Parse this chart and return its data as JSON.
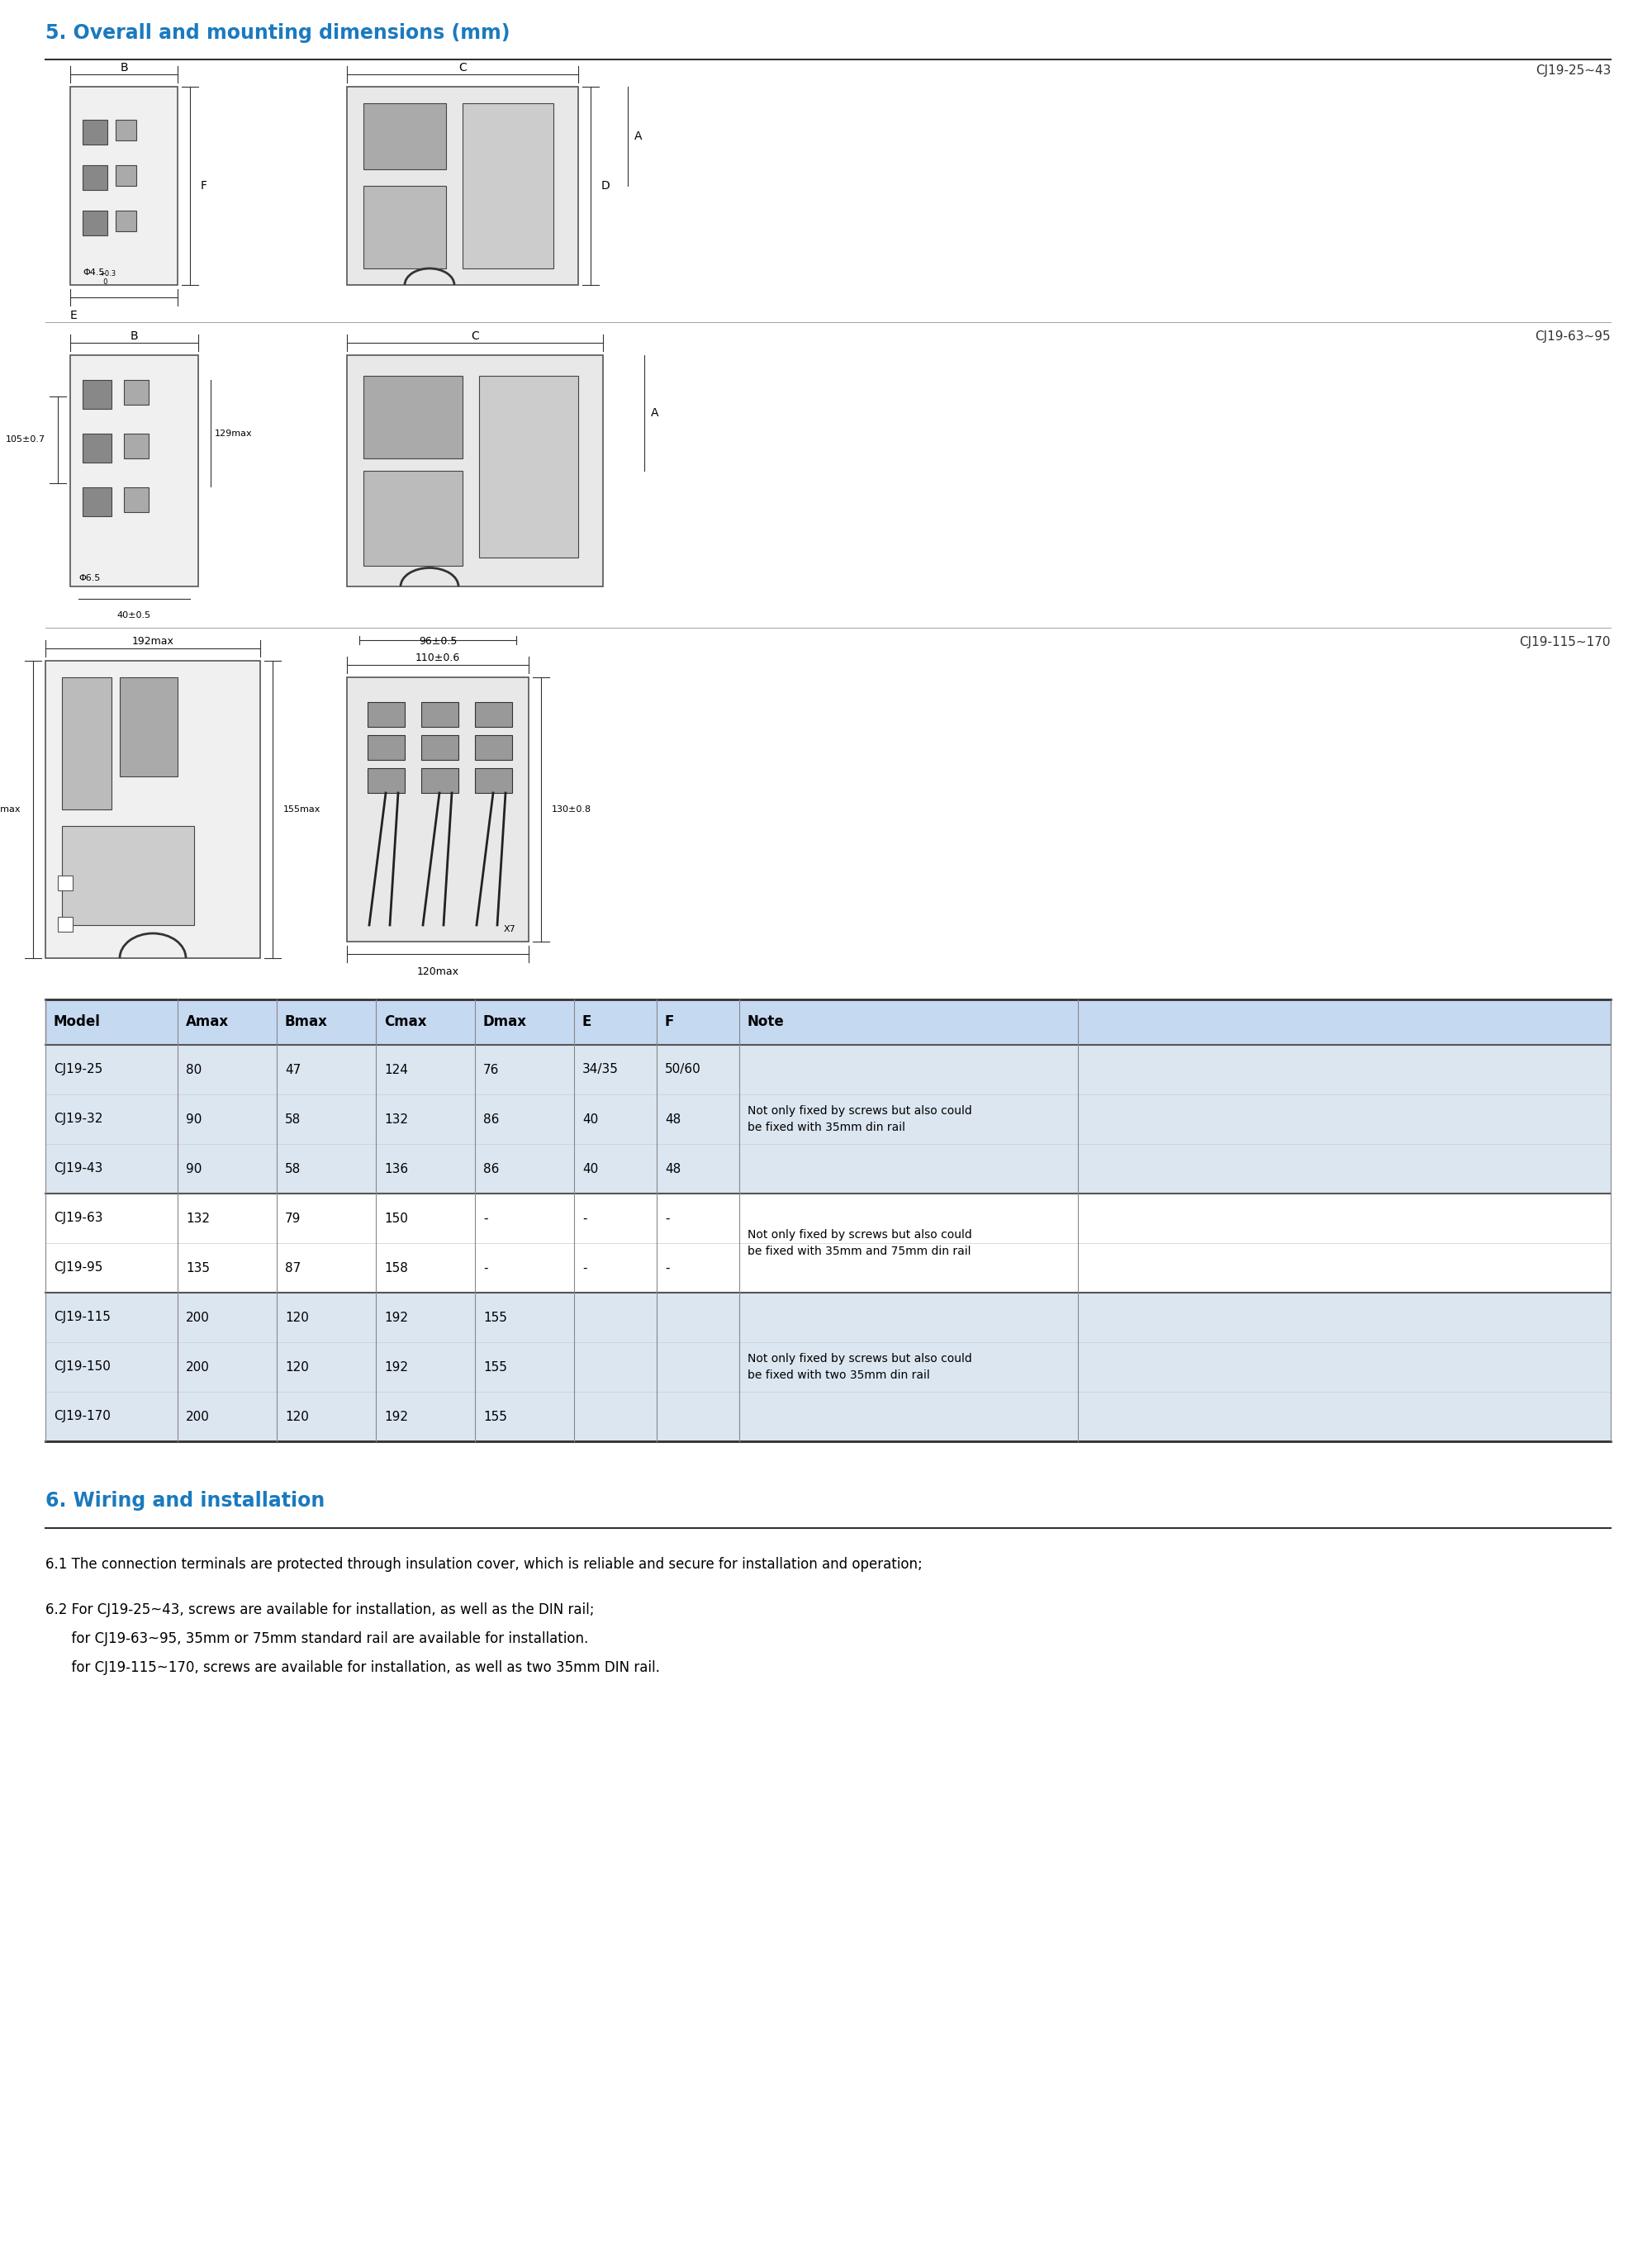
{
  "title_section5": "5. Overall and mounting dimensions (mm)",
  "title_section6": "6. Wiring and installation",
  "title_color": "#1a7abf",
  "bg_color": "#ffffff",
  "label_cj19_25_43": "CJ19-25~43",
  "label_cj19_63_95": "CJ19-63~95",
  "label_cj19_115_170": "CJ19-115~170",
  "table_header": [
    "Model",
    "Amax",
    "Bmax",
    "Cmax",
    "Dmax",
    "E",
    "F",
    "Note"
  ],
  "table_header_bg": "#c5d9f1",
  "table_row_odd_bg": "#dce6f1",
  "table_row_even_bg": "#ffffff",
  "table_rows": [
    [
      "CJ19-25",
      "80",
      "47",
      "124",
      "76",
      "34/35",
      "50/60",
      ""
    ],
    [
      "CJ19-32",
      "90",
      "58",
      "132",
      "86",
      "40",
      "48",
      "Not only fixed by screws but also could\nbe fixed with 35mm din rail"
    ],
    [
      "CJ19-43",
      "90",
      "58",
      "136",
      "86",
      "40",
      "48",
      ""
    ],
    [
      "CJ19-63",
      "132",
      "79",
      "150",
      "-",
      "-",
      "-",
      "Not only fixed by screws but also could\nbe fixed with 35mm and 75mm din rail"
    ],
    [
      "CJ19-95",
      "135",
      "87",
      "158",
      "-",
      "-",
      "-",
      ""
    ],
    [
      "CJ19-115",
      "200",
      "120",
      "192",
      "155",
      "",
      "",
      "Not only fixed by screws but also could\nbe fixed with two 35mm din rail"
    ],
    [
      "CJ19-150",
      "200",
      "120",
      "192",
      "155",
      "",
      "",
      ""
    ],
    [
      "CJ19-170",
      "200",
      "120",
      "192",
      "155",
      "",
      "",
      ""
    ]
  ],
  "text_61": "6.1 The connection terminals are protected through insulation cover, which is reliable and secure for installation and operation;",
  "text_62_line1": "6.2 For CJ19-25~43, screws are available for installation, as well as the DIN rail;",
  "text_62_line2": "      for CJ19-63~95, 35mm or 75mm standard rail are available for installation.",
  "text_62_line3": "      for CJ19-115~170, screws are available for installation, as well as two 35mm DIN rail.",
  "line_color": "#000000",
  "dim_color": "#333333",
  "text_fontsize": 11,
  "header_fontsize": 13,
  "section_fontsize": 16
}
